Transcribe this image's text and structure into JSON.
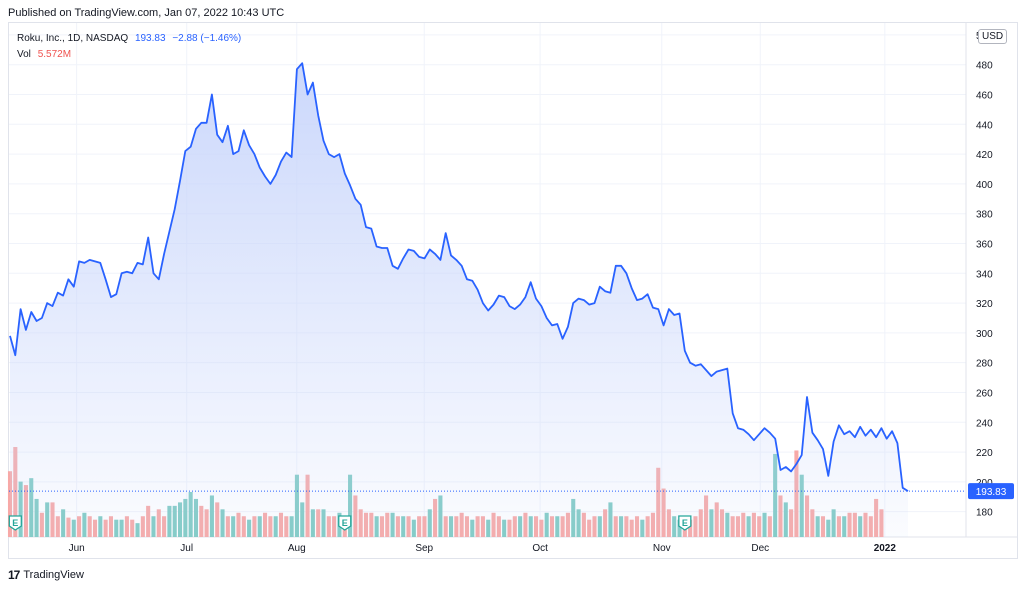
{
  "header": {
    "published": "Published on TradingView.com, Jan 07, 2022 10:43 UTC"
  },
  "legend": {
    "symbol": "Roku, Inc., 1D, NASDAQ",
    "price": "193.83",
    "change": "−2.88 (−1.46%)",
    "vol_label": "Vol",
    "vol_value": "5.572M"
  },
  "currency": "USD",
  "footer": {
    "logo_mark": "17",
    "logo_text": "TradingView"
  },
  "colors": {
    "line": "#2962ff",
    "area_top": "#c9d6fb",
    "vol_up": "#80cbc4",
    "vol_down": "#f7a9a7",
    "last_price_tag": "#2962ff",
    "grid": "#f0f3fa",
    "earnings_marker": "#26a69a"
  },
  "chart_data": {
    "type": "line",
    "series": [
      {
        "name": "Roku, Inc.",
        "values": [
          298,
          285,
          316,
          302,
          314,
          308,
          310,
          320,
          318,
          327,
          325,
          336,
          331,
          348,
          347,
          349,
          348,
          347,
          336,
          324,
          326,
          340,
          341,
          340,
          347,
          346,
          364,
          340,
          336,
          353,
          368,
          383,
          402,
          422,
          425,
          437,
          441,
          441,
          460,
          433,
          428,
          439,
          420,
          422,
          436,
          426,
          420,
          411,
          405,
          400,
          406,
          415,
          421,
          418,
          477,
          481,
          460,
          468,
          446,
          429,
          420,
          418,
          420,
          407,
          399,
          390,
          386,
          371,
          370,
          358,
          357,
          357,
          345,
          343,
          350,
          356,
          355,
          351,
          350,
          356,
          353,
          349,
          367,
          352,
          349,
          345,
          336,
          335,
          329,
          320,
          315,
          319,
          325,
          324,
          318,
          316,
          319,
          324,
          334,
          323,
          318,
          310,
          305,
          306,
          296,
          304,
          320,
          323,
          322,
          319,
          320,
          331,
          328,
          327,
          345,
          345,
          340,
          330,
          322,
          323,
          326,
          317,
          316,
          305,
          316,
          312,
          313,
          288,
          280,
          278,
          279,
          275,
          271,
          274,
          275,
          276,
          246,
          236,
          235,
          232,
          228,
          232,
          236,
          233,
          229,
          208,
          210,
          207,
          212,
          218,
          257,
          233,
          228,
          222,
          204,
          227,
          238,
          232,
          234,
          230,
          237,
          231,
          235,
          230,
          236,
          229,
          234,
          226,
          196,
          193.83
        ]
      }
    ],
    "volume_series": [
      {
        "v": 9.5,
        "up": false
      },
      {
        "v": 13,
        "up": false
      },
      {
        "v": 8,
        "up": true
      },
      {
        "v": 7.5,
        "up": false
      },
      {
        "v": 8.5,
        "up": true
      },
      {
        "v": 5.5,
        "up": true
      },
      {
        "v": 3.5,
        "up": false
      },
      {
        "v": 5,
        "up": true
      },
      {
        "v": 5,
        "up": false
      },
      {
        "v": 3,
        "up": false
      },
      {
        "v": 4,
        "up": true
      },
      {
        "v": 2.8,
        "up": false
      },
      {
        "v": 2.5,
        "up": true
      },
      {
        "v": 3,
        "up": false
      },
      {
        "v": 3.5,
        "up": true
      },
      {
        "v": 3,
        "up": false
      },
      {
        "v": 2.5,
        "up": false
      },
      {
        "v": 3,
        "up": true
      },
      {
        "v": 2.5,
        "up": false
      },
      {
        "v": 3,
        "up": false
      },
      {
        "v": 2.5,
        "up": true
      },
      {
        "v": 2.5,
        "up": true
      },
      {
        "v": 3,
        "up": false
      },
      {
        "v": 2.5,
        "up": false
      },
      {
        "v": 2,
        "up": true
      },
      {
        "v": 3,
        "up": false
      },
      {
        "v": 4.5,
        "up": false
      },
      {
        "v": 3,
        "up": true
      },
      {
        "v": 4,
        "up": false
      },
      {
        "v": 3,
        "up": false
      },
      {
        "v": 4.5,
        "up": true
      },
      {
        "v": 4.5,
        "up": true
      },
      {
        "v": 5,
        "up": true
      },
      {
        "v": 5.5,
        "up": true
      },
      {
        "v": 6.5,
        "up": true
      },
      {
        "v": 5.5,
        "up": true
      },
      {
        "v": 4.5,
        "up": false
      },
      {
        "v": 4,
        "up": false
      },
      {
        "v": 6,
        "up": true
      },
      {
        "v": 5,
        "up": false
      },
      {
        "v": 4,
        "up": true
      },
      {
        "v": 3,
        "up": false
      },
      {
        "v": 3,
        "up": true
      },
      {
        "v": 3.5,
        "up": false
      },
      {
        "v": 3,
        "up": false
      },
      {
        "v": 2.5,
        "up": true
      },
      {
        "v": 3,
        "up": false
      },
      {
        "v": 3,
        "up": true
      },
      {
        "v": 3.5,
        "up": false
      },
      {
        "v": 3,
        "up": false
      },
      {
        "v": 3,
        "up": true
      },
      {
        "v": 3.5,
        "up": false
      },
      {
        "v": 3,
        "up": false
      },
      {
        "v": 3,
        "up": true
      },
      {
        "v": 9,
        "up": true
      },
      {
        "v": 5,
        "up": true
      },
      {
        "v": 9,
        "up": false
      },
      {
        "v": 4,
        "up": true
      },
      {
        "v": 4,
        "up": false
      },
      {
        "v": 4,
        "up": true
      },
      {
        "v": 3,
        "up": false
      },
      {
        "v": 3,
        "up": false
      },
      {
        "v": 3.5,
        "up": true
      },
      {
        "v": 3,
        "up": false
      },
      {
        "v": 9,
        "up": true
      },
      {
        "v": 6,
        "up": false
      },
      {
        "v": 4,
        "up": false
      },
      {
        "v": 3.5,
        "up": false
      },
      {
        "v": 3.5,
        "up": false
      },
      {
        "v": 3,
        "up": true
      },
      {
        "v": 3,
        "up": false
      },
      {
        "v": 3.5,
        "up": false
      },
      {
        "v": 3.5,
        "up": true
      },
      {
        "v": 3,
        "up": false
      },
      {
        "v": 3,
        "up": true
      },
      {
        "v": 3,
        "up": false
      },
      {
        "v": 2.5,
        "up": true
      },
      {
        "v": 3,
        "up": false
      },
      {
        "v": 3,
        "up": false
      },
      {
        "v": 4,
        "up": true
      },
      {
        "v": 5.5,
        "up": false
      },
      {
        "v": 6,
        "up": true
      },
      {
        "v": 3,
        "up": false
      },
      {
        "v": 3,
        "up": true
      },
      {
        "v": 3,
        "up": false
      },
      {
        "v": 3.5,
        "up": false
      },
      {
        "v": 3,
        "up": false
      },
      {
        "v": 2.5,
        "up": true
      },
      {
        "v": 3,
        "up": false
      },
      {
        "v": 3,
        "up": false
      },
      {
        "v": 2.5,
        "up": true
      },
      {
        "v": 3.5,
        "up": false
      },
      {
        "v": 3,
        "up": false
      },
      {
        "v": 2.5,
        "up": true
      },
      {
        "v": 2.5,
        "up": false
      },
      {
        "v": 3,
        "up": false
      },
      {
        "v": 3,
        "up": true
      },
      {
        "v": 3.5,
        "up": false
      },
      {
        "v": 3,
        "up": true
      },
      {
        "v": 3,
        "up": false
      },
      {
        "v": 2.5,
        "up": false
      },
      {
        "v": 3.5,
        "up": true
      },
      {
        "v": 3,
        "up": false
      },
      {
        "v": 3,
        "up": true
      },
      {
        "v": 3,
        "up": false
      },
      {
        "v": 3.5,
        "up": false
      },
      {
        "v": 5.5,
        "up": true
      },
      {
        "v": 4,
        "up": true
      },
      {
        "v": 3.5,
        "up": false
      },
      {
        "v": 2.5,
        "up": false
      },
      {
        "v": 3,
        "up": false
      },
      {
        "v": 3,
        "up": true
      },
      {
        "v": 4,
        "up": false
      },
      {
        "v": 5,
        "up": true
      },
      {
        "v": 3,
        "up": false
      },
      {
        "v": 3,
        "up": true
      },
      {
        "v": 3,
        "up": false
      },
      {
        "v": 2.5,
        "up": false
      },
      {
        "v": 3,
        "up": false
      },
      {
        "v": 2.5,
        "up": true
      },
      {
        "v": 3,
        "up": false
      },
      {
        "v": 3.5,
        "up": false
      },
      {
        "v": 10,
        "up": false
      },
      {
        "v": 7,
        "up": false
      },
      {
        "v": 4,
        "up": false
      },
      {
        "v": 3,
        "up": true
      },
      {
        "v": 2.5,
        "up": true
      },
      {
        "v": 3,
        "up": false
      },
      {
        "v": 2.5,
        "up": false
      },
      {
        "v": 3,
        "up": false
      },
      {
        "v": 4,
        "up": false
      },
      {
        "v": 6,
        "up": false
      },
      {
        "v": 4,
        "up": true
      },
      {
        "v": 5,
        "up": false
      },
      {
        "v": 4,
        "up": false
      },
      {
        "v": 3.5,
        "up": true
      },
      {
        "v": 3,
        "up": false
      },
      {
        "v": 3,
        "up": false
      },
      {
        "v": 3.5,
        "up": false
      },
      {
        "v": 3,
        "up": true
      },
      {
        "v": 3.5,
        "up": false
      },
      {
        "v": 3,
        "up": false
      },
      {
        "v": 3.5,
        "up": true
      },
      {
        "v": 3,
        "up": false
      },
      {
        "v": 12,
        "up": true
      },
      {
        "v": 6,
        "up": false
      },
      {
        "v": 5,
        "up": true
      },
      {
        "v": 4,
        "up": false
      },
      {
        "v": 12.5,
        "up": false
      },
      {
        "v": 9,
        "up": true
      },
      {
        "v": 6,
        "up": false
      },
      {
        "v": 4,
        "up": false
      },
      {
        "v": 3,
        "up": true
      },
      {
        "v": 3,
        "up": false
      },
      {
        "v": 2.5,
        "up": true
      },
      {
        "v": 4,
        "up": true
      },
      {
        "v": 3,
        "up": false
      },
      {
        "v": 3,
        "up": true
      },
      {
        "v": 3.5,
        "up": false
      },
      {
        "v": 3.5,
        "up": false
      },
      {
        "v": 3,
        "up": true
      },
      {
        "v": 3.5,
        "up": false
      },
      {
        "v": 3,
        "up": false
      },
      {
        "v": 5.5,
        "up": false
      },
      {
        "v": 4,
        "up": false
      }
    ],
    "x_ticks": [
      "Jun",
      "Jul",
      "Aug",
      "Sep",
      "Oct",
      "Nov",
      "Dec",
      "2022"
    ],
    "y_ticks": [
      180,
      200,
      220,
      240,
      260,
      280,
      300,
      320,
      340,
      360,
      380,
      400,
      420,
      440,
      460,
      480,
      500
    ],
    "ylim": [
      163,
      508
    ],
    "last_price": "193.83",
    "earnings_markers": [
      1,
      63,
      127
    ],
    "earnings_marker_label": "E",
    "grid": true
  }
}
